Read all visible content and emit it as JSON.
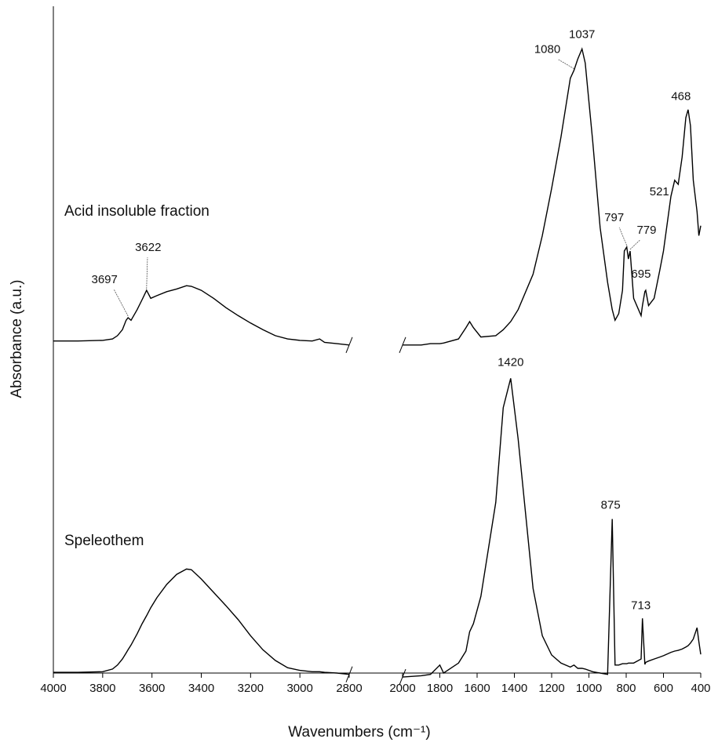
{
  "chart_data": {
    "type": "line",
    "x_label": "Wavenumbers (cm⁻¹)",
    "y_label": "Absorbance (a.u.)",
    "xlim": [
      [
        4000,
        2800
      ],
      [
        2000,
        400
      ]
    ],
    "xticks": [
      4000,
      3800,
      3600,
      3400,
      3200,
      3000,
      2800,
      2000,
      1800,
      1600,
      1400,
      1200,
      1000,
      800,
      600,
      400
    ],
    "ylim": [
      0,
      100
    ],
    "x": [
      4000,
      3900,
      3800,
      3760,
      3740,
      3720,
      3705,
      3697,
      3685,
      3660,
      3640,
      3622,
      3605,
      3580,
      3540,
      3500,
      3460,
      3440,
      3400,
      3350,
      3300,
      3250,
      3200,
      3150,
      3100,
      3050,
      3000,
      2950,
      2920,
      2900,
      2850,
      2800,
      2400,
      2000,
      1900,
      1850,
      1800,
      1780,
      1700,
      1660,
      1640,
      1620,
      1580,
      1500,
      1460,
      1420,
      1380,
      1300,
      1250,
      1200,
      1150,
      1100,
      1080,
      1060,
      1037,
      1020,
      980,
      940,
      900,
      875,
      860,
      840,
      820,
      810,
      797,
      788,
      779,
      760,
      720,
      713,
      700,
      695,
      680,
      650,
      620,
      600,
      560,
      540,
      521,
      500,
      480,
      468,
      455,
      440,
      420,
      410,
      400
    ],
    "series": [
      {
        "name": "Acid insoluble fraction",
        "color": "#000000",
        "values": [
          49.8,
          49.8,
          49.9,
          50.1,
          50.6,
          51.5,
          52.9,
          53.3,
          52.9,
          54.5,
          56.0,
          57.4,
          56.2,
          56.6,
          57.2,
          57.6,
          58.1,
          58.0,
          57.4,
          56.2,
          54.8,
          53.6,
          52.5,
          51.5,
          50.6,
          50.1,
          49.9,
          49.8,
          50.1,
          49.6,
          49.4,
          49.2,
          null,
          49.2,
          49.2,
          49.4,
          49.4,
          49.5,
          50.1,
          51.8,
          52.7,
          51.8,
          50.4,
          50.6,
          51.5,
          52.7,
          54.5,
          59.8,
          65.6,
          72.7,
          80.4,
          89.2,
          90.4,
          92.1,
          93.6,
          91.5,
          79.8,
          66.8,
          58.6,
          54.5,
          52.9,
          53.9,
          57.4,
          63.3,
          63.9,
          62.1,
          63.3,
          56.2,
          53.6,
          55.1,
          57.2,
          57.4,
          55.1,
          56.2,
          60.4,
          63.3,
          71.5,
          73.9,
          73.3,
          77.4,
          83.3,
          84.5,
          82.1,
          73.9,
          69.2,
          65.6,
          67.1
        ],
        "peaks": [
          3697,
          3622,
          1080,
          1037,
          797,
          779,
          695,
          521,
          468
        ]
      },
      {
        "name": "Speleothem",
        "color": "#000000",
        "values": [
          0.1,
          0.1,
          0.2,
          0.6,
          1.2,
          2.1,
          3.0,
          3.5,
          4.2,
          5.9,
          7.4,
          8.6,
          9.8,
          11.3,
          13.3,
          14.8,
          15.6,
          15.5,
          14.1,
          12.1,
          10.1,
          8.0,
          5.6,
          3.5,
          1.9,
          0.8,
          0.4,
          0.2,
          0.2,
          0.1,
          0,
          -0.2,
          null,
          -0.6,
          -0.4,
          -0.2,
          1.2,
          0,
          1.5,
          3.3,
          6.2,
          7.4,
          11.5,
          25.6,
          39.8,
          44.2,
          35.1,
          12.7,
          5.6,
          2.7,
          1.5,
          0.9,
          1.2,
          0.7,
          0.7,
          0.6,
          0.2,
          0,
          -0.2,
          23.1,
          1.2,
          1.2,
          1.4,
          1.4,
          1.4,
          1.5,
          1.5,
          1.5,
          2.1,
          8.2,
          1.3,
          1.6,
          1.8,
          2.1,
          2.4,
          2.6,
          3.1,
          3.3,
          3.4,
          3.6,
          3.9,
          4.1,
          4.5,
          5.1,
          6.8,
          4.7,
          2.8
        ],
        "peaks": [
          1420,
          875,
          713
        ]
      }
    ]
  }
}
